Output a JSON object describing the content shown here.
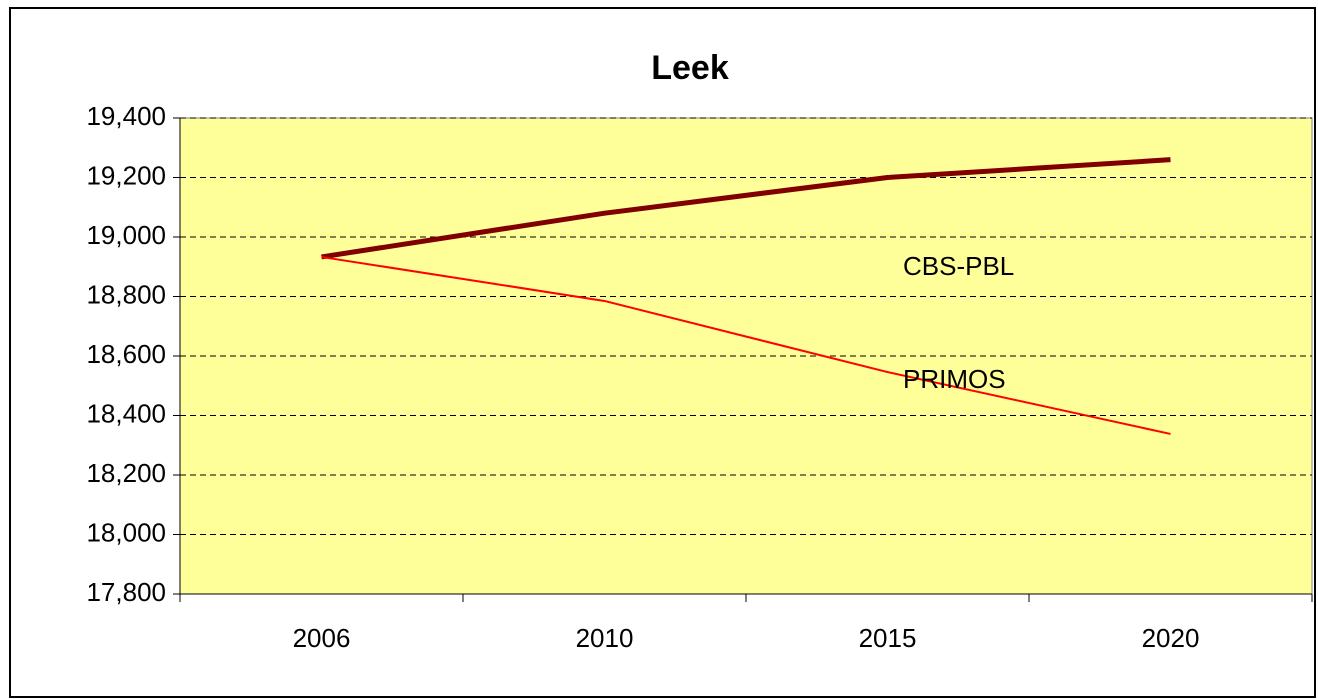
{
  "chart_data": {
    "type": "line",
    "title": "Leek",
    "categories": [
      "2006",
      "2010",
      "2015",
      "2020"
    ],
    "series": [
      {
        "name": "CBS-PBL",
        "color": "#800000",
        "values": [
          18933,
          19080,
          19200,
          19260
        ]
      },
      {
        "name": "PRIMOS",
        "color": "#ff0000",
        "values": [
          18933,
          18785,
          18546,
          18338
        ]
      }
    ],
    "ylim": [
      17800,
      19400
    ],
    "yticks": [
      {
        "value": 17800,
        "label": "17,800"
      },
      {
        "value": 18000,
        "label": "18,000"
      },
      {
        "value": 18200,
        "label": "18,200"
      },
      {
        "value": 18400,
        "label": "18,400"
      },
      {
        "value": 18600,
        "label": "18,600"
      },
      {
        "value": 18800,
        "label": "18,800"
      },
      {
        "value": 19000,
        "label": "19,000"
      },
      {
        "value": 19200,
        "label": "19,200"
      },
      {
        "value": 19400,
        "label": "19,400"
      }
    ],
    "grid": true,
    "plot_background": "#ffff99"
  }
}
